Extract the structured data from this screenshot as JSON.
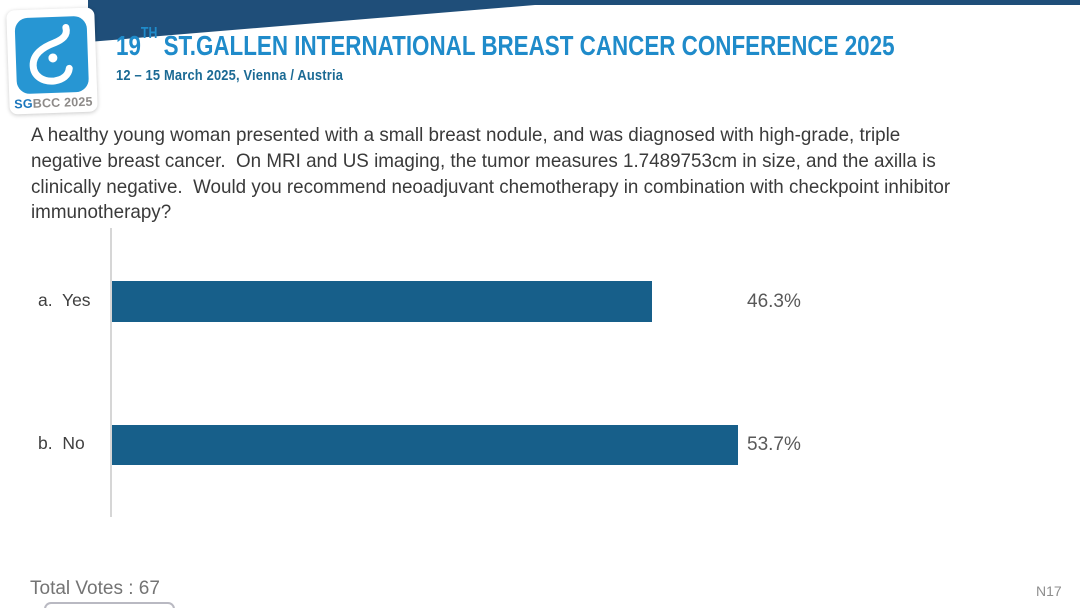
{
  "header": {
    "title_num": "19",
    "title_sup": "TH",
    "title_rest": " ST.GALLEN INTERNATIONAL BREAST CANCER CONFERENCE 2025",
    "subtitle": "12 – 15 March 2025, Vienna / Austria",
    "logo": {
      "icon": "sgbcc-breast-ribbon-icon",
      "text_sg": "SG",
      "text_rest": "BCC 2025"
    }
  },
  "question": "A healthy young woman presented with a small breast nodule, and was diagnosed with high-grade, triple negative breast cancer.  On MRI and US imaging, the tumor measures 1.7489753cm in size, and the axilla is clinically negative.  Would you recommend neoadjuvant chemotherapy in combination with checkpoint inhibitor immunotherapy?",
  "chart_data": {
    "type": "bar",
    "orientation": "horizontal",
    "categories": [
      "a.  Yes",
      "b.  No"
    ],
    "values": [
      46.3,
      53.7
    ],
    "value_labels": [
      "46.3%",
      "53.7%"
    ],
    "title": "",
    "xlabel": "",
    "ylabel": "",
    "xlim": [
      0,
      100
    ],
    "grid": false,
    "legend": false,
    "bar_color": "#175F8A",
    "axis_line_color": "#D6D6D6",
    "total_votes": 67
  },
  "footer": {
    "total_votes_text": "Total Votes : 67",
    "slide_code": "N17"
  },
  "colors": {
    "banner_navy": "#1F4E79",
    "title_blue": "#1F8BCA",
    "subtitle_blue": "#1B6A94",
    "logo_square_blue": "#2796D3",
    "bar_blue": "#175F8A",
    "percent_gray": "#595959",
    "footer_gray": "#747474"
  }
}
